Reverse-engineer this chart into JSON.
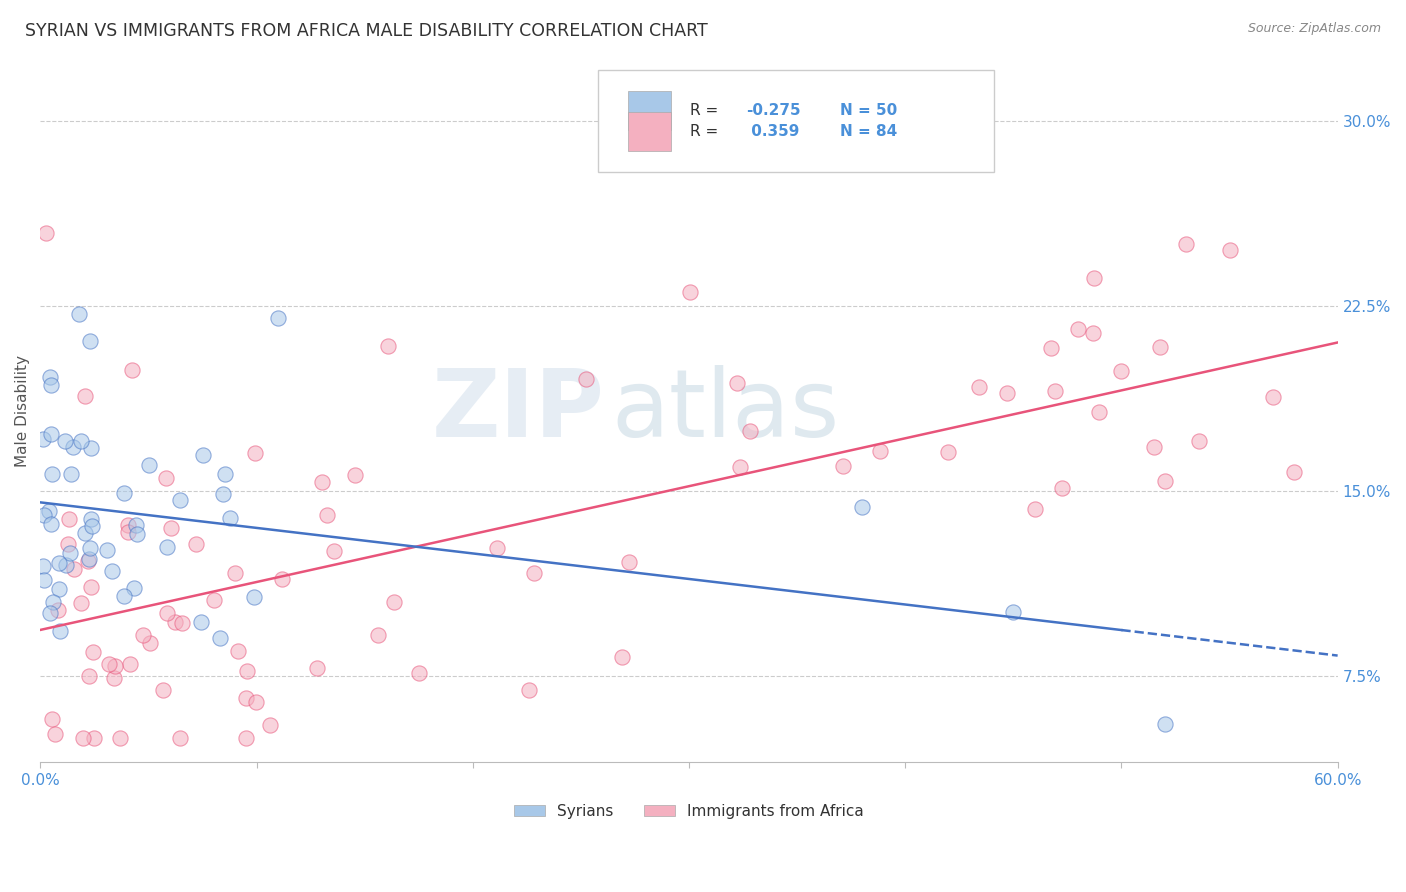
{
  "title": "SYRIAN VS IMMIGRANTS FROM AFRICA MALE DISABILITY CORRELATION CHART",
  "source": "Source: ZipAtlas.com",
  "ylabel": "Male Disability",
  "xlim": [
    0.0,
    0.6
  ],
  "ylim": [
    0.04,
    0.325
  ],
  "xtick_positions": [
    0.0,
    0.1,
    0.2,
    0.3,
    0.4,
    0.5,
    0.6
  ],
  "xticklabels": [
    "0.0%",
    "",
    "",
    "",
    "",
    "",
    "60.0%"
  ],
  "ytick_positions": [
    0.075,
    0.15,
    0.225,
    0.3
  ],
  "yticklabels": [
    "7.5%",
    "15.0%",
    "22.5%",
    "30.0%"
  ],
  "legend_r": [
    -0.275,
    0.359
  ],
  "legend_n": [
    50,
    84
  ],
  "color_syrians": "#a8c8e8",
  "color_africa": "#f4b0c0",
  "line_color_syrians": "#4472c4",
  "line_color_africa": "#e8547a",
  "background_color": "#ffffff",
  "grid_color": "#cccccc",
  "watermark_zip": "ZIP",
  "watermark_atlas": "atlas",
  "title_color": "#333333",
  "source_color": "#888888",
  "tick_color": "#4a90d9",
  "ylabel_color": "#555555",
  "legend_text_color": "#333333",
  "legend_r_color": "#4a90d9"
}
